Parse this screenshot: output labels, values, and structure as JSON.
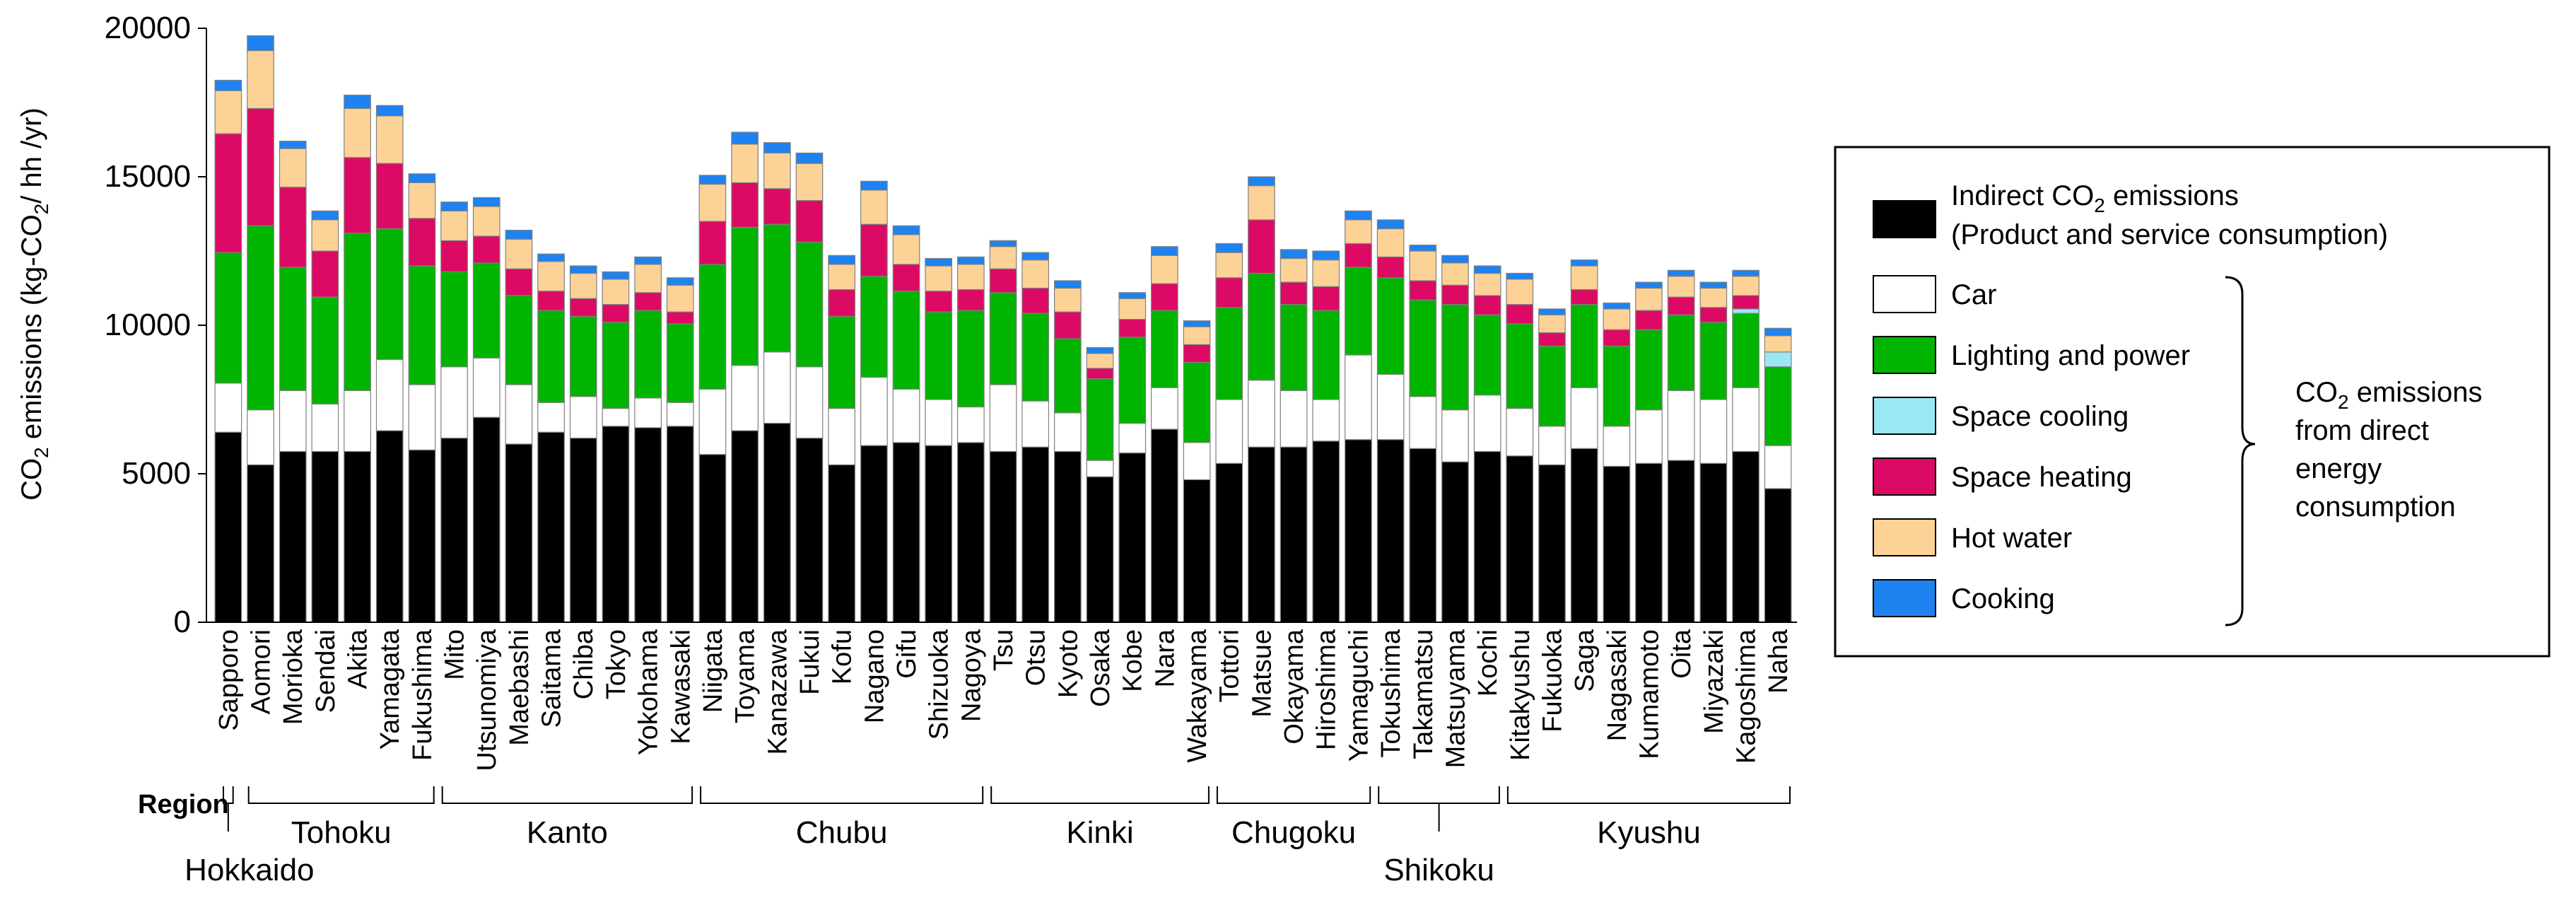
{
  "chart_data": {
    "type": "bar",
    "stacked": true,
    "title": "",
    "ylabel": "CO2 emissions (kg-CO2/ hh /yr)",
    "ylabel_parts": {
      "pre": "CO",
      "sub": "2",
      "mid": " emissions (kg-CO",
      "sub2": "2",
      "post": "/ hh /yr)"
    },
    "ylim": [
      0,
      20000
    ],
    "yticks": [
      "0",
      "5000",
      "10000",
      "15000",
      "20000"
    ],
    "categories": [
      "Sapporo",
      "Aomori",
      "Morioka",
      "Sendai",
      "Akita",
      "Yamagata",
      "Fukushima",
      "Mito",
      "Utsunomiya",
      "Maebashi",
      "Saitama",
      "Chiba",
      "Tokyo",
      "Yokohama",
      "Kawasaki",
      "Niigata",
      "Toyama",
      "Kanazawa",
      "Fukui",
      "Kofu",
      "Nagano",
      "Gifu",
      "Shizuoka",
      "Nagoya",
      "Tsu",
      "Otsu",
      "Kyoto",
      "Osaka",
      "Kobe",
      "Nara",
      "Wakayama",
      "Tottori",
      "Matsue",
      "Okayama",
      "Hiroshima",
      "Yamaguchi",
      "Tokushima",
      "Takamatsu",
      "Matsuyama",
      "Kochi",
      "Kitakyushu",
      "Fukuoka",
      "Saga",
      "Nagasaki",
      "Kumamoto",
      "Oita",
      "Miyazaki",
      "Kagoshima",
      "Naha"
    ],
    "series": [
      {
        "name": "Indirect CO2 emissions (Product and service consumption)",
        "color": "#000000",
        "values": [
          6400,
          5300,
          5750,
          5750,
          5750,
          6450,
          5800,
          6200,
          6900,
          6000,
          6400,
          6200,
          6600,
          6550,
          6600,
          5650,
          6450,
          6700,
          6200,
          5300,
          5950,
          6050,
          5950,
          6050,
          5750,
          5900,
          5750,
          4900,
          5700,
          6500,
          4800,
          5350,
          5900,
          5900,
          6100,
          6150,
          6150,
          5850,
          5400,
          5750,
          5600,
          5300,
          5850,
          5250,
          5350,
          5450,
          5350,
          5750,
          4500
        ]
      },
      {
        "name": "Car",
        "color": "#ffffff",
        "values": [
          1650,
          1850,
          2050,
          1600,
          2050,
          2400,
          2200,
          2400,
          2000,
          2000,
          1000,
          1400,
          600,
          1000,
          800,
          2200,
          2200,
          2400,
          2400,
          1900,
          2300,
          1800,
          1550,
          1200,
          2250,
          1550,
          1300,
          550,
          1000,
          1400,
          1250,
          2150,
          2250,
          1900,
          1400,
          2850,
          2200,
          1750,
          1750,
          1900,
          1600,
          1300,
          2050,
          1350,
          1800,
          2350,
          2150,
          2150,
          1450
        ]
      },
      {
        "name": "Lighting and power",
        "color": "#00b400",
        "values": [
          4400,
          6200,
          4150,
          3600,
          5300,
          4400,
          4000,
          3200,
          3200,
          3000,
          3100,
          2700,
          2900,
          2950,
          2650,
          4200,
          4650,
          4300,
          4200,
          3100,
          3400,
          3300,
          2950,
          3250,
          3100,
          2950,
          2500,
          2750,
          2900,
          2600,
          2700,
          3100,
          3600,
          2900,
          3000,
          2950,
          3250,
          3250,
          3550,
          2700,
          2850,
          2700,
          2800,
          2700,
          2700,
          2550,
          2600,
          2500,
          2650
        ]
      },
      {
        "name": "Space cooling",
        "color": "#9be8f5",
        "values": [
          0,
          0,
          0,
          0,
          0,
          0,
          0,
          0,
          0,
          0,
          0,
          0,
          0,
          0,
          0,
          0,
          0,
          0,
          0,
          0,
          0,
          0,
          0,
          0,
          0,
          0,
          0,
          0,
          0,
          0,
          0,
          0,
          0,
          0,
          0,
          0,
          0,
          0,
          0,
          0,
          0,
          0,
          0,
          0,
          0,
          0,
          0,
          150,
          500
        ]
      },
      {
        "name": "Space heating",
        "color": "#dc0a64",
        "values": [
          4000,
          3950,
          2700,
          1550,
          2550,
          2200,
          1600,
          1050,
          900,
          900,
          650,
          600,
          600,
          600,
          400,
          1450,
          1500,
          1200,
          1400,
          900,
          1750,
          900,
          700,
          700,
          800,
          850,
          900,
          350,
          600,
          900,
          600,
          1000,
          1800,
          750,
          800,
          800,
          700,
          650,
          650,
          650,
          650,
          450,
          500,
          550,
          650,
          600,
          500,
          450,
          0
        ]
      },
      {
        "name": "Hot water",
        "color": "#fdd296",
        "values": [
          1450,
          1950,
          1300,
          1050,
          1650,
          1600,
          1200,
          1000,
          1000,
          1000,
          1000,
          850,
          850,
          950,
          900,
          1250,
          1300,
          1200,
          1250,
          850,
          1150,
          1000,
          850,
          850,
          750,
          950,
          800,
          500,
          700,
          950,
          600,
          850,
          1150,
          800,
          900,
          800,
          950,
          1000,
          750,
          750,
          850,
          600,
          800,
          700,
          750,
          700,
          650,
          650,
          550
        ]
      },
      {
        "name": "Cooking",
        "color": "#1e82f0",
        "values": [
          350,
          500,
          250,
          300,
          450,
          350,
          300,
          300,
          300,
          300,
          250,
          250,
          250,
          250,
          250,
          300,
          400,
          350,
          350,
          300,
          300,
          300,
          250,
          250,
          200,
          250,
          250,
          200,
          200,
          300,
          200,
          300,
          300,
          300,
          300,
          300,
          300,
          200,
          250,
          250,
          200,
          200,
          200,
          200,
          200,
          200,
          200,
          200,
          250
        ]
      }
    ],
    "regions": [
      {
        "name": "Hokkaido",
        "start": 0,
        "end": 0
      },
      {
        "name": "Tohoku",
        "start": 1,
        "end": 6
      },
      {
        "name": "Kanto",
        "start": 7,
        "end": 14
      },
      {
        "name": "Chubu",
        "start": 15,
        "end": 23
      },
      {
        "name": "Kinki",
        "start": 24,
        "end": 30
      },
      {
        "name": "Chugoku",
        "start": 31,
        "end": 35
      },
      {
        "name": "Shikoku",
        "start": 36,
        "end": 39
      },
      {
        "name": "Kyushu",
        "start": 40,
        "end": 48
      }
    ],
    "region_label": "Region",
    "legend": {
      "position": "right",
      "indirect_line1_pre": "Indirect CO",
      "indirect_line1_sub": "2",
      "indirect_line1_post": " emissions",
      "indirect_line2": "(Product and service consumption)",
      "items": [
        "Car",
        "Lighting and power",
        "Space cooling",
        "Space heating",
        "Hot water",
        "Cooking"
      ],
      "brace_line1_pre": "CO",
      "brace_line1_sub": "2",
      "brace_line1_post": " emissions",
      "brace_line2": "from direct",
      "brace_line3": "energy",
      "brace_line4": "consumption"
    }
  }
}
